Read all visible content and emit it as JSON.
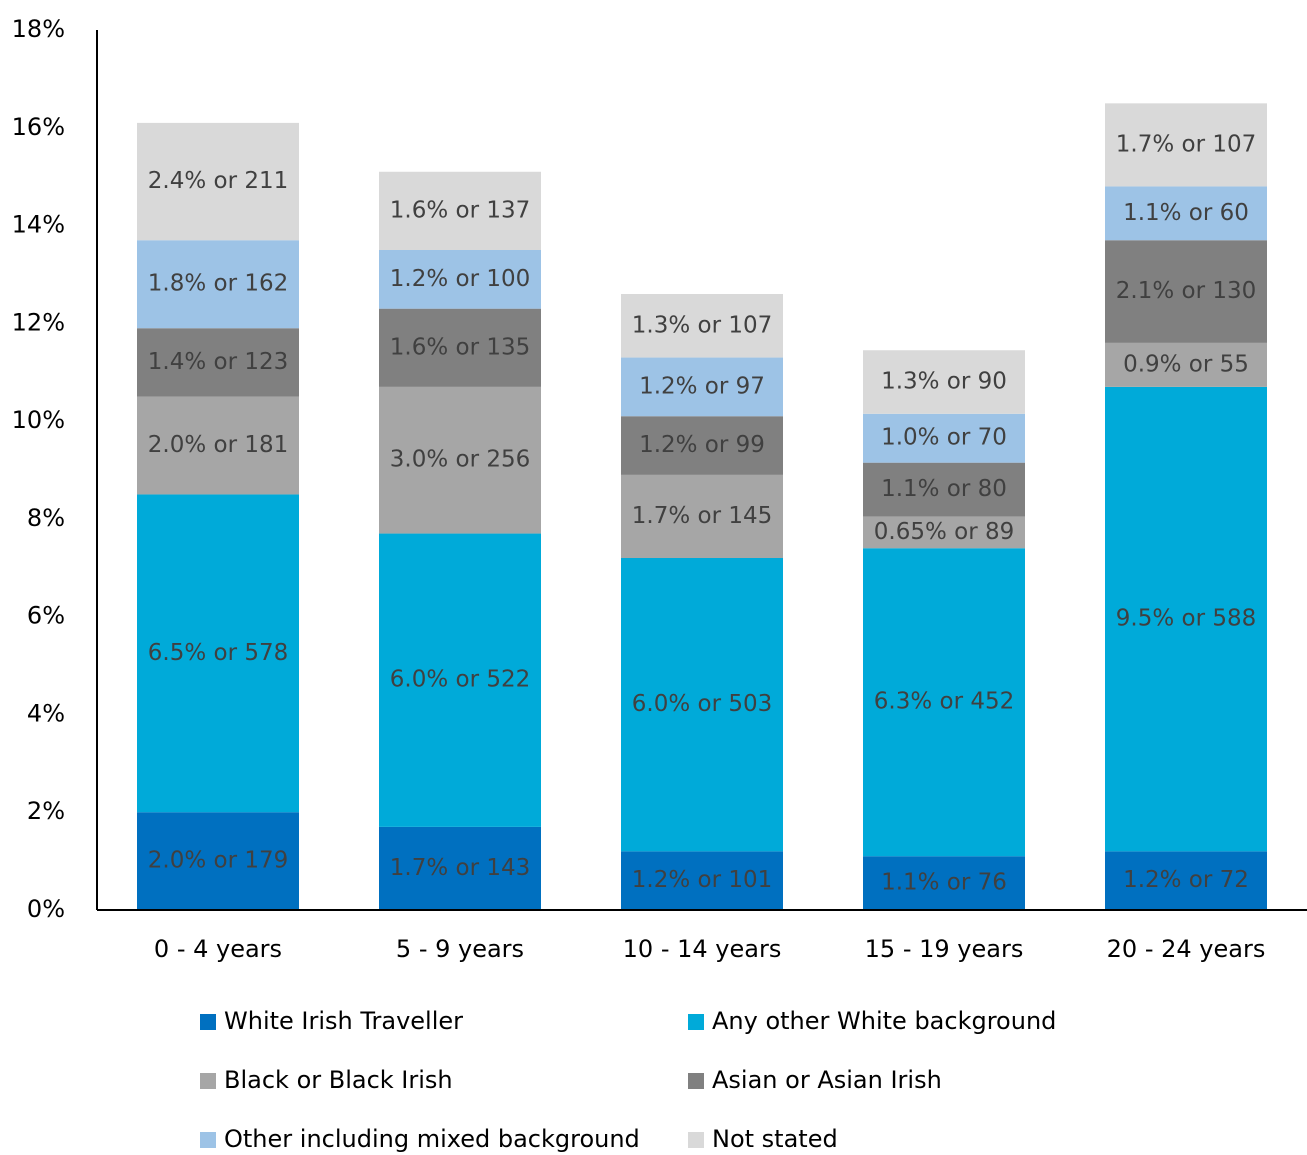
{
  "chart_data": {
    "type": "stacked_bar",
    "categories": [
      "0 - 4 years",
      "5 - 9 years",
      "10 - 14 years",
      "15 - 19 years",
      "20 - 24 years"
    ],
    "series": [
      {
        "name": "White Irish Traveller",
        "color": "#0070c0",
        "values": [
          2.0,
          1.7,
          1.2,
          1.1,
          1.2
        ],
        "value_labels": [
          "2.0% or 179",
          "1.7% or 143",
          "1.2% or 101",
          "1.1% or 76",
          "1.2% or 72"
        ]
      },
      {
        "name": "Any other White background",
        "color": "#00aad9",
        "values": [
          6.5,
          6.0,
          6.0,
          6.3,
          9.5
        ],
        "value_labels": [
          "6.5% or 578",
          "6.0% or 522",
          "6.0% or 503",
          "6.3% or 452",
          "9.5% or 588"
        ]
      },
      {
        "name": "Black or Black Irish",
        "color": "#a6a6a6",
        "values": [
          2.0,
          3.0,
          1.7,
          0.65,
          0.9
        ],
        "value_labels": [
          "2.0% or 181",
          "3.0% or 256",
          "1.7% or 145",
          "0.65% or 89",
          "0.9% or 55"
        ]
      },
      {
        "name": "Asian or Asian Irish",
        "color": "#808080",
        "values": [
          1.4,
          1.6,
          1.2,
          1.1,
          2.1
        ],
        "value_labels": [
          "1.4% or 123",
          "1.6% or 135",
          "1.2% or 99",
          "1.1% or 80",
          "2.1% or 130"
        ]
      },
      {
        "name": "Other including mixed background",
        "color": "#9dc3e6",
        "values": [
          1.8,
          1.2,
          1.2,
          1.0,
          1.1
        ],
        "value_labels": [
          "1.8% or 162",
          "1.2% or 100",
          "1.2% or 97",
          "1.0% or 70",
          "1.1% or 60"
        ]
      },
      {
        "name": "Not stated",
        "color": "#d9d9d9",
        "values": [
          2.4,
          1.6,
          1.3,
          1.3,
          1.7
        ],
        "value_labels": [
          "2.4% or 211",
          "1.6% or 137",
          "1.3% or 107",
          "1.3% or 90",
          "1.7% or 107"
        ]
      }
    ],
    "ylim": [
      0,
      18
    ],
    "yticks": [
      {
        "value": 0,
        "label": "0%"
      },
      {
        "value": 2,
        "label": "2%"
      },
      {
        "value": 4,
        "label": "4%"
      },
      {
        "value": 6,
        "label": "6%"
      },
      {
        "value": 8,
        "label": "8%"
      },
      {
        "value": 10,
        "label": "10%"
      },
      {
        "value": 12,
        "label": "12%"
      },
      {
        "value": 14,
        "label": "14%"
      },
      {
        "value": 16,
        "label": "16%"
      },
      {
        "value": 18,
        "label": "18%"
      }
    ],
    "grid": false,
    "legend": "bottom"
  }
}
